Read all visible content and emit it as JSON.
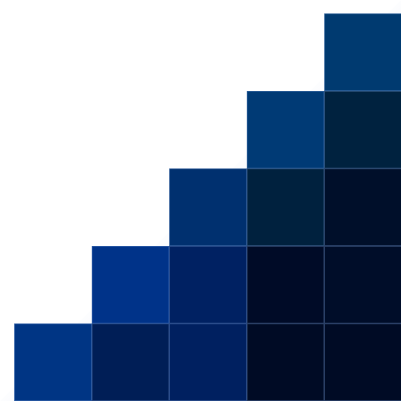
{
  "pattern": {
    "name": "stepped-blue-grid",
    "background_color": "#ffffff",
    "glow_color": "#6f8fc6",
    "tile_border_color": "#5a7fc0",
    "rows": [
      [
        "#003a70"
      ],
      [
        "#003a75",
        "#00223f"
      ],
      [
        "#00306f",
        "#00213e",
        "#000f2a"
      ],
      [
        "#003389",
        "#002162",
        "#000b27",
        "#000d29"
      ],
      [
        "#003584",
        "#001e56",
        "#002060",
        "#000b25",
        "#000b25"
      ]
    ]
  }
}
